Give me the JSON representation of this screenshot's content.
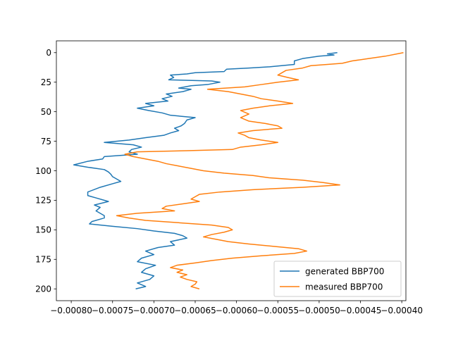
{
  "chart_data": {
    "type": "line",
    "title": "",
    "xlabel": "",
    "ylabel": "",
    "xlim": [
      -0.000818,
      -0.000395
    ],
    "ylim": [
      210,
      -10
    ],
    "y_inverted": true,
    "x_ticks": [
      -0.0008,
      -0.00075,
      -0.0007,
      -0.00065,
      -0.0006,
      -0.00055,
      -0.0005,
      -0.00045,
      -0.0004
    ],
    "x_tick_labels": [
      "−0.00080",
      "−0.00075",
      "−0.00070",
      "−0.00065",
      "−0.00060",
      "−0.00055",
      "−0.00050",
      "−0.00045",
      "−0.00040"
    ],
    "y_ticks": [
      0,
      25,
      50,
      75,
      100,
      125,
      150,
      175,
      200
    ],
    "y_tick_labels": [
      "0",
      "25",
      "50",
      "75",
      "100",
      "125",
      "150",
      "175",
      "200"
    ],
    "grid": false,
    "legend_position": "bottom-right",
    "series": [
      {
        "name": "generated BBP700",
        "color": "#1f77b4",
        "points": [
          [
            -0.000478,
            0
          ],
          [
            -0.00049,
            1
          ],
          [
            -0.000482,
            2
          ],
          [
            -0.0005,
            3
          ],
          [
            -0.00052,
            5
          ],
          [
            -0.00053,
            7
          ],
          [
            -0.00053,
            10
          ],
          [
            -0.00056,
            12
          ],
          [
            -0.000585,
            13
          ],
          [
            -0.000612,
            14
          ],
          [
            -0.000615,
            16
          ],
          [
            -0.00065,
            17
          ],
          [
            -0.00066,
            18
          ],
          [
            -0.00068,
            19
          ],
          [
            -0.000676,
            21
          ],
          [
            -0.000682,
            23
          ],
          [
            -0.00063,
            24
          ],
          [
            -0.00062,
            25
          ],
          [
            -0.000635,
            27
          ],
          [
            -0.000655,
            28
          ],
          [
            -0.00067,
            30
          ],
          [
            -0.000655,
            31
          ],
          [
            -0.000665,
            33
          ],
          [
            -0.000685,
            35
          ],
          [
            -0.000678,
            37
          ],
          [
            -0.00069,
            39
          ],
          [
            -0.000683,
            41
          ],
          [
            -0.00071,
            43
          ],
          [
            -0.0007,
            45
          ],
          [
            -0.00072,
            47
          ],
          [
            -0.000706,
            49
          ],
          [
            -0.00069,
            51
          ],
          [
            -0.00068,
            53
          ],
          [
            -0.00065,
            55
          ],
          [
            -0.00066,
            57
          ],
          [
            -0.000663,
            60
          ],
          [
            -0.000667,
            62
          ],
          [
            -0.000675,
            64
          ],
          [
            -0.00067,
            66
          ],
          [
            -0.00068,
            68
          ],
          [
            -0.000688,
            70
          ],
          [
            -0.00071,
            72
          ],
          [
            -0.00073,
            74
          ],
          [
            -0.00076,
            76
          ],
          [
            -0.000725,
            78
          ],
          [
            -0.000715,
            80
          ],
          [
            -0.000727,
            82
          ],
          [
            -0.00073,
            84
          ],
          [
            -0.00072,
            86
          ],
          [
            -0.00076,
            88
          ],
          [
            -0.000762,
            90
          ],
          [
            -0.00078,
            92
          ],
          [
            -0.000797,
            95
          ],
          [
            -0.00078,
            97
          ],
          [
            -0.00076,
            99
          ],
          [
            -0.000755,
            101
          ],
          [
            -0.000752,
            103
          ],
          [
            -0.00075,
            105
          ],
          [
            -0.000745,
            107
          ],
          [
            -0.00074,
            109
          ],
          [
            -0.00075,
            111
          ],
          [
            -0.000765,
            114
          ],
          [
            -0.00078,
            118
          ],
          [
            -0.00078,
            121
          ],
          [
            -0.00077,
            123
          ],
          [
            -0.000755,
            126
          ],
          [
            -0.000772,
            129
          ],
          [
            -0.000765,
            131
          ],
          [
            -0.00077,
            134
          ],
          [
            -0.000765,
            136
          ],
          [
            -0.00076,
            138
          ],
          [
            -0.00076,
            140
          ],
          [
            -0.000775,
            143
          ],
          [
            -0.000778,
            145
          ],
          [
            -0.00075,
            147
          ],
          [
            -0.00072,
            149
          ],
          [
            -0.0007,
            151
          ],
          [
            -0.000675,
            153
          ],
          [
            -0.000665,
            155
          ],
          [
            -0.00066,
            157
          ],
          [
            -0.00068,
            160
          ],
          [
            -0.000675,
            163
          ],
          [
            -0.000695,
            165
          ],
          [
            -0.00071,
            168
          ],
          [
            -0.0007,
            171
          ],
          [
            -0.000715,
            174
          ],
          [
            -0.00072,
            177
          ],
          [
            -0.000698,
            180
          ],
          [
            -0.00071,
            183
          ],
          [
            -0.000715,
            186
          ],
          [
            -0.0007,
            189
          ],
          [
            -0.000705,
            192
          ],
          [
            -0.00072,
            195
          ],
          [
            -0.00071,
            198
          ],
          [
            -0.000722,
            200
          ]
        ]
      },
      {
        "name": "measured BBP700",
        "color": "#ff7f0e",
        "points": [
          [
            -0.000398,
            0
          ],
          [
            -0.00042,
            3
          ],
          [
            -0.00044,
            5
          ],
          [
            -0.00046,
            7
          ],
          [
            -0.000472,
            9
          ],
          [
            -0.00049,
            10
          ],
          [
            -0.00051,
            11
          ],
          [
            -0.00052,
            13
          ],
          [
            -0.00054,
            15
          ],
          [
            -0.000545,
            17
          ],
          [
            -0.00055,
            19
          ],
          [
            -0.000538,
            21
          ],
          [
            -0.000525,
            23
          ],
          [
            -0.00055,
            25
          ],
          [
            -0.00057,
            27
          ],
          [
            -0.00059,
            29
          ],
          [
            -0.000635,
            31
          ],
          [
            -0.00061,
            33
          ],
          [
            -0.000595,
            35
          ],
          [
            -0.00058,
            37
          ],
          [
            -0.00057,
            39
          ],
          [
            -0.00055,
            41
          ],
          [
            -0.000532,
            43
          ],
          [
            -0.00056,
            45
          ],
          [
            -0.00058,
            47
          ],
          [
            -0.000595,
            49
          ],
          [
            -0.000585,
            52
          ],
          [
            -0.000595,
            55
          ],
          [
            -0.000585,
            58
          ],
          [
            -0.000565,
            60
          ],
          [
            -0.00055,
            62
          ],
          [
            -0.000545,
            64
          ],
          [
            -0.00058,
            66
          ],
          [
            -0.000598,
            68
          ],
          [
            -0.00059,
            70
          ],
          [
            -0.000585,
            72
          ],
          [
            -0.00057,
            74
          ],
          [
            -0.00055,
            76
          ],
          [
            -0.00057,
            78
          ],
          [
            -0.000595,
            80
          ],
          [
            -0.000605,
            82
          ],
          [
            -0.00066,
            83
          ],
          [
            -0.00072,
            84
          ],
          [
            -0.000735,
            86
          ],
          [
            -0.000725,
            88
          ],
          [
            -0.00071,
            90
          ],
          [
            -0.000695,
            92
          ],
          [
            -0.000685,
            94
          ],
          [
            -0.00067,
            96
          ],
          [
            -0.000655,
            98
          ],
          [
            -0.00064,
            100
          ],
          [
            -0.000615,
            102
          ],
          [
            -0.00058,
            104
          ],
          [
            -0.00056,
            106
          ],
          [
            -0.00052,
            108
          ],
          [
            -0.000495,
            110
          ],
          [
            -0.000475,
            112
          ],
          [
            -0.00052,
            114
          ],
          [
            -0.00058,
            116
          ],
          [
            -0.00062,
            118
          ],
          [
            -0.000645,
            120
          ],
          [
            -0.00065,
            122
          ],
          [
            -0.000655,
            124
          ],
          [
            -0.000645,
            126
          ],
          [
            -0.000665,
            128
          ],
          [
            -0.000685,
            130
          ],
          [
            -0.00069,
            132
          ],
          [
            -0.000675,
            134
          ],
          [
            -0.00072,
            136
          ],
          [
            -0.000745,
            138
          ],
          [
            -0.00073,
            140
          ],
          [
            -0.00071,
            142
          ],
          [
            -0.00067,
            144
          ],
          [
            -0.00063,
            146
          ],
          [
            -0.00061,
            148
          ],
          [
            -0.000605,
            150
          ],
          [
            -0.000615,
            152
          ],
          [
            -0.00063,
            154
          ],
          [
            -0.00064,
            156
          ],
          [
            -0.000625,
            158
          ],
          [
            -0.00061,
            160
          ],
          [
            -0.000585,
            162
          ],
          [
            -0.000555,
            164
          ],
          [
            -0.000525,
            166
          ],
          [
            -0.000515,
            168
          ],
          [
            -0.00053,
            170
          ],
          [
            -0.00057,
            172
          ],
          [
            -0.000605,
            174
          ],
          [
            -0.00063,
            176
          ],
          [
            -0.00065,
            178
          ],
          [
            -0.000672,
            180
          ],
          [
            -0.00068,
            182
          ],
          [
            -0.000665,
            184
          ],
          [
            -0.000672,
            186
          ],
          [
            -0.00066,
            188
          ],
          [
            -0.000668,
            190
          ],
          [
            -0.00066,
            192
          ],
          [
            -0.000648,
            194
          ],
          [
            -0.00065,
            196
          ],
          [
            -0.000655,
            198
          ],
          [
            -0.000645,
            200
          ]
        ]
      }
    ]
  }
}
